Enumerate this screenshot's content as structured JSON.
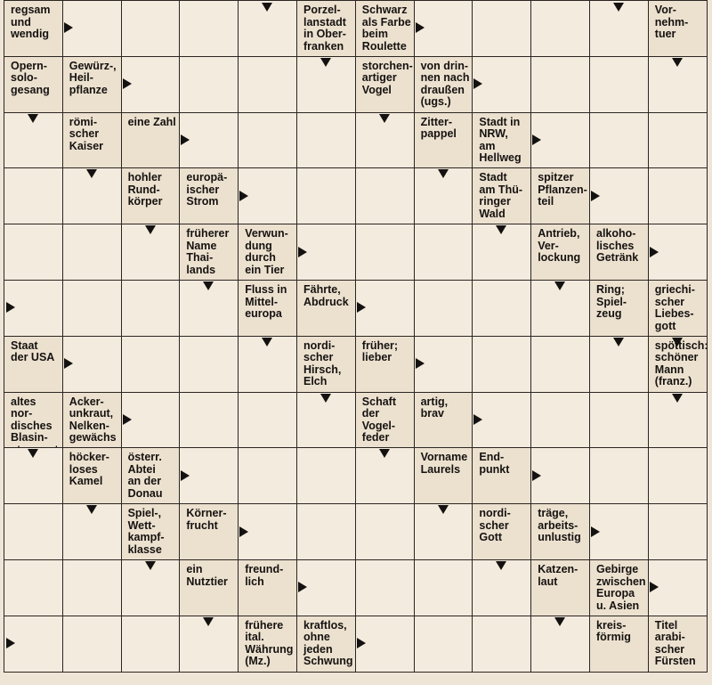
{
  "puzzle": {
    "type": "Schwedenrätsel",
    "rows": 12,
    "cols": 12,
    "clues": [
      {
        "id": "c1",
        "r": 0,
        "c": 0,
        "text": "regsam\nund\nwendig",
        "arrows": [
          "right"
        ]
      },
      {
        "id": "c2",
        "r": 0,
        "c": 5,
        "text": "Porzel-\nlanstadt\nin Ober-\nfranken",
        "arrows": [
          "down"
        ]
      },
      {
        "id": "c3",
        "r": 0,
        "c": 6,
        "text": "Schwarz\nals Farbe\nbeim\nRoulette",
        "arrows": [
          "right"
        ]
      },
      {
        "id": "c4",
        "r": 0,
        "c": 11,
        "text": "Vor-\nnehm-\ntuer",
        "arrows": [
          "down"
        ]
      },
      {
        "id": "c5",
        "r": 1,
        "c": 0,
        "text": "Opern-\nsolo-\ngesang",
        "arrows": [
          "down"
        ]
      },
      {
        "id": "c6",
        "r": 1,
        "c": 1,
        "text": "Gewürz-,\nHeil-\npflanze",
        "arrows": [
          "right"
        ]
      },
      {
        "id": "c7",
        "r": 1,
        "c": 6,
        "text": "storchen-\nartiger\nVogel",
        "arrows": [
          "down"
        ]
      },
      {
        "id": "c8",
        "r": 1,
        "c": 7,
        "text": "von drin-\nnen nach\ndraußen\n(ugs.)",
        "arrows": [
          "right"
        ]
      },
      {
        "id": "c9",
        "r": 2,
        "c": 1,
        "text": "römi-\nscher\nKaiser",
        "arrows": [
          "down"
        ]
      },
      {
        "id": "c10",
        "r": 2,
        "c": 2,
        "text": "eine Zahl",
        "arrows": [
          "right"
        ]
      },
      {
        "id": "c11",
        "r": 2,
        "c": 7,
        "text": "Zitter-\npappel",
        "arrows": [
          "down"
        ]
      },
      {
        "id": "c12",
        "r": 2,
        "c": 8,
        "text": "Stadt in\nNRW,\nam\nHellweg",
        "arrows": [
          "right"
        ]
      },
      {
        "id": "c13",
        "r": 3,
        "c": 2,
        "text": "hohler\nRund-\nkörper",
        "arrows": [
          "down"
        ]
      },
      {
        "id": "c14",
        "r": 3,
        "c": 3,
        "text": "europä-\nischer\nStrom",
        "arrows": [
          "right"
        ]
      },
      {
        "id": "c15",
        "r": 3,
        "c": 8,
        "text": "Stadt\nam Thü-\nringer\nWald",
        "arrows": [
          "down"
        ]
      },
      {
        "id": "c16",
        "r": 3,
        "c": 9,
        "text": "spitzer\nPflanzen-\nteil",
        "arrows": [
          "right"
        ]
      },
      {
        "id": "c17",
        "r": 4,
        "c": 3,
        "text": "früherer\nName\nThai-\nlands",
        "arrows": [
          "down"
        ]
      },
      {
        "id": "c18",
        "r": 4,
        "c": 4,
        "text": "Verwun-\ndung\ndurch\nein Tier",
        "arrows": [
          "right"
        ]
      },
      {
        "id": "c19",
        "r": 4,
        "c": 9,
        "text": "Antrieb,\nVer-\nlockung",
        "arrows": [
          "down"
        ]
      },
      {
        "id": "c20",
        "r": 4,
        "c": 10,
        "text": "alkoho-\nlisches\nGetränk",
        "arrows": [
          "right"
        ]
      },
      {
        "id": "c21",
        "r": 5,
        "c": 4,
        "text": "Fluss in\nMittel-\neuropa",
        "arrows": [
          "down"
        ]
      },
      {
        "id": "c22",
        "r": 5,
        "c": 5,
        "text": "Fährte,\nAbdruck",
        "arrows": [
          "right"
        ]
      },
      {
        "id": "c23",
        "r": 5,
        "c": 10,
        "text": "Ring;\nSpiel-\nzeug",
        "arrows": [
          "down"
        ]
      },
      {
        "id": "c24",
        "r": 5,
        "c": 11,
        "text": "griechi-\nscher\nLiebes-\ngott",
        "arrows": [
          "down"
        ]
      },
      {
        "id": "c25",
        "r": 6,
        "c": 0,
        "text": "Staat\nder USA",
        "arrows": [
          "right"
        ]
      },
      {
        "id": "c26",
        "r": 6,
        "c": 5,
        "text": "nordi-\nscher\nHirsch,\nElch",
        "arrows": [
          "down"
        ]
      },
      {
        "id": "c27",
        "r": 6,
        "c": 6,
        "text": "früher;\nlieber",
        "arrows": [
          "right"
        ]
      },
      {
        "id": "c28",
        "r": 6,
        "c": 11,
        "text": "spöttisch:\nschöner\nMann\n(franz.)",
        "arrows": [
          "down"
        ]
      },
      {
        "id": "c29",
        "r": 7,
        "c": 0,
        "text": "altes nor-\ndisches\nBlasin-\nstrument",
        "arrows": [
          "down"
        ]
      },
      {
        "id": "c30",
        "r": 7,
        "c": 1,
        "text": "Acker-\nunkraut,\nNelken-\ngewächs",
        "arrows": [
          "right"
        ]
      },
      {
        "id": "c31",
        "r": 7,
        "c": 6,
        "text": "Schaft\nder\nVogel-\nfeder",
        "arrows": [
          "down"
        ]
      },
      {
        "id": "c32",
        "r": 7,
        "c": 7,
        "text": "artig,\nbrav",
        "arrows": [
          "right"
        ]
      },
      {
        "id": "c33",
        "r": 8,
        "c": 1,
        "text": "höcker-\nloses\nKamel",
        "arrows": [
          "down"
        ]
      },
      {
        "id": "c34",
        "r": 8,
        "c": 2,
        "text": "österr.\nAbtei\nan der\nDonau",
        "arrows": [
          "right"
        ]
      },
      {
        "id": "c35",
        "r": 8,
        "c": 7,
        "text": "Vorname\nLaurels",
        "arrows": [
          "down"
        ]
      },
      {
        "id": "c36",
        "r": 8,
        "c": 8,
        "text": "End-\npunkt",
        "arrows": [
          "right"
        ]
      },
      {
        "id": "c37",
        "r": 9,
        "c": 2,
        "text": "Spiel-,\nWett-\nkampf-\nklasse",
        "arrows": [
          "down"
        ]
      },
      {
        "id": "c38",
        "r": 9,
        "c": 3,
        "text": "Körner-\nfrucht",
        "arrows": [
          "right"
        ]
      },
      {
        "id": "c39",
        "r": 9,
        "c": 8,
        "text": "nordi-\nscher\nGott",
        "arrows": [
          "down"
        ]
      },
      {
        "id": "c40",
        "r": 9,
        "c": 9,
        "text": "träge,\narbeits-\nunlustig",
        "arrows": [
          "right"
        ]
      },
      {
        "id": "c41",
        "r": 10,
        "c": 3,
        "text": "ein\nNutztier",
        "arrows": [
          "down"
        ]
      },
      {
        "id": "c42",
        "r": 10,
        "c": 4,
        "text": "freund-\nlich",
        "arrows": [
          "right"
        ]
      },
      {
        "id": "c43",
        "r": 10,
        "c": 9,
        "text": "Katzen-\nlaut",
        "arrows": [
          "down"
        ]
      },
      {
        "id": "c44",
        "r": 10,
        "c": 10,
        "text": "Gebirge\nzwischen\nEuropa\nu. Asien",
        "arrows": [
          "right"
        ]
      },
      {
        "id": "c45",
        "r": 11,
        "c": 4,
        "text": "frühere\nital.\nWährung\n(Mz.)",
        "arrows": []
      },
      {
        "id": "c46",
        "r": 11,
        "c": 5,
        "text": "kraftlos,\nohne\njeden\nSchwung",
        "arrows": [
          "right"
        ]
      },
      {
        "id": "c47",
        "r": 11,
        "c": 10,
        "text": "kreis-\nförmig",
        "arrows": []
      },
      {
        "id": "c48",
        "r": 11,
        "c": 11,
        "text": "Titel\narabi-\nscher\nFürsten",
        "arrows": []
      }
    ],
    "entry_arrows": [
      {
        "r": 0,
        "c": 4,
        "dir": "down"
      },
      {
        "r": 0,
        "c": 10,
        "dir": "down"
      },
      {
        "r": 5,
        "c": 0,
        "dir": "right"
      },
      {
        "r": 11,
        "c": 0,
        "dir": "right"
      }
    ]
  }
}
